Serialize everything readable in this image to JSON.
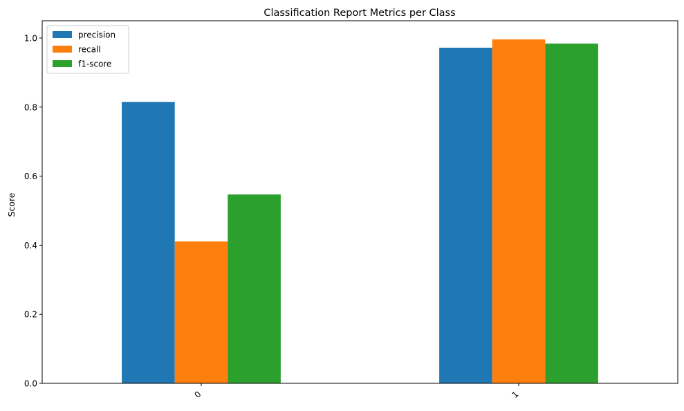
{
  "chart_data": {
    "type": "bar",
    "title": "Classification Report Metrics per Class",
    "xlabel": "",
    "ylabel": "Score",
    "categories": [
      "0",
      "1"
    ],
    "series": [
      {
        "name": "precision",
        "values": [
          0.815,
          0.972
        ],
        "color": "#1f77b4"
      },
      {
        "name": "recall",
        "values": [
          0.411,
          0.996
        ],
        "color": "#ff7f0e"
      },
      {
        "name": "f1-score",
        "values": [
          0.547,
          0.984
        ],
        "color": "#2ca02c"
      }
    ],
    "ylim": [
      0,
      1.05
    ],
    "yticks": [
      0.0,
      0.2,
      0.4,
      0.6,
      0.8,
      1.0
    ],
    "ytick_labels": [
      "0.0",
      "0.2",
      "0.4",
      "0.6",
      "0.8",
      "1.0"
    ],
    "grid": false,
    "legend_position": "top-left"
  }
}
